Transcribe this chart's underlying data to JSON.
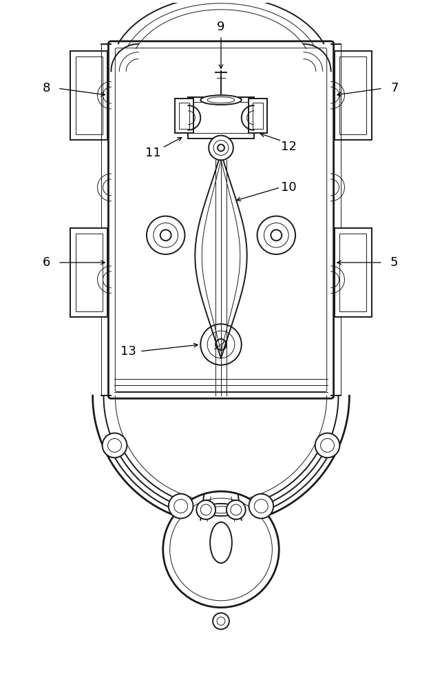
{
  "bg_color": "#ffffff",
  "lc": "#1a1a1a",
  "lw": 1.4,
  "lw_thin": 0.7,
  "lw_thick": 2.0
}
